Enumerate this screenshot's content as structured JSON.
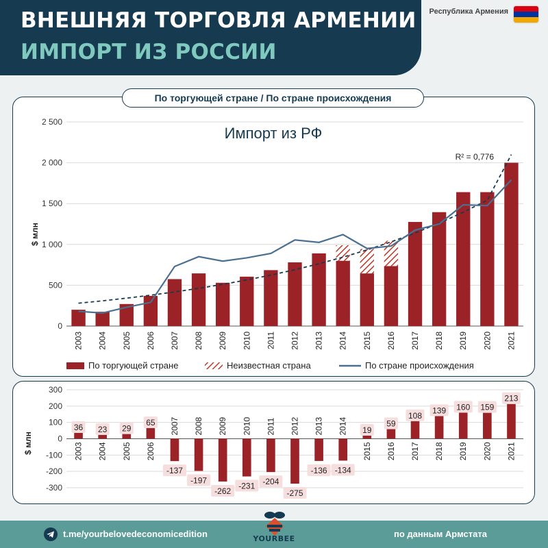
{
  "header": {
    "title": "ВНЕШНЯЯ ТОРГОВЛЯ АРМЕНИИ",
    "subtitle": "ИМПОРТ ИЗ РОССИИ",
    "country_label": "Республика Армения",
    "flag_colors": [
      "#d90012",
      "#0033a0",
      "#f2a800"
    ]
  },
  "toggle_label": "По торгующей стране / По стране происхождения",
  "footer": {
    "link": "t.me/yourbelovedeconomicedition",
    "source": "по данным Армстата",
    "brand": "YOURBEE",
    "telegram_icon": "telegram-icon"
  },
  "chart_data": [
    {
      "type": "bar",
      "title": "Импорт из РФ",
      "ylabel": "$ млн",
      "xlabel": "",
      "ylim": [
        0,
        2500
      ],
      "yticks": [
        0,
        500,
        1000,
        1500,
        2000,
        2500
      ],
      "ytick_labels": [
        "0",
        "500",
        "1 000",
        "1 500",
        "2 000",
        "2 500"
      ],
      "grid": true,
      "legend_position": "bottom",
      "categories": [
        "2003",
        "2004",
        "2005",
        "2006",
        "2007",
        "2008",
        "2009",
        "2010",
        "2011",
        "2012",
        "2013",
        "2014",
        "2015",
        "2016",
        "2017",
        "2018",
        "2019",
        "2020",
        "2021"
      ],
      "series": [
        {
          "name": "По торгующей стране",
          "kind": "bar",
          "color": "#9b2226",
          "values": [
            200,
            175,
            270,
            370,
            575,
            645,
            530,
            605,
            685,
            780,
            890,
            800,
            645,
            735,
            1275,
            1395,
            1640,
            1640,
            2000
          ]
        },
        {
          "name": "Неизвестная страна",
          "kind": "bar-stacked-hatched",
          "color": "#c0392b",
          "values": [
            0,
            0,
            0,
            0,
            0,
            0,
            0,
            0,
            0,
            0,
            0,
            190,
            300,
            310,
            0,
            0,
            0,
            0,
            0
          ]
        },
        {
          "name": "По стране происхождения",
          "kind": "line",
          "color": "#4a6f91",
          "values": [
            180,
            160,
            230,
            290,
            730,
            850,
            795,
            835,
            890,
            1055,
            1025,
            1120,
            950,
            980,
            1175,
            1250,
            1485,
            1475,
            1790
          ]
        }
      ],
      "trendline": {
        "type": "exponential",
        "label": "R² = 0,776",
        "color": "#163a4f",
        "values": [
          280,
          309,
          342,
          378,
          418,
          462,
          511,
          565,
          624,
          690,
          763,
          844,
          933,
          1031,
          1140,
          1261,
          1394,
          1541,
          2100
        ]
      }
    },
    {
      "type": "bar",
      "title": "",
      "ylabel": "$ млн",
      "xlabel": "",
      "ylim": [
        -300,
        300
      ],
      "yticks": [
        -300,
        -200,
        -100,
        0,
        100,
        200,
        300
      ],
      "ytick_labels": [
        "-300",
        "-200",
        "-100",
        "0",
        "100",
        "200",
        "300"
      ],
      "grid": true,
      "categories": [
        "2003",
        "2004",
        "2005",
        "2006",
        "2007",
        "2008",
        "2009",
        "2010",
        "2011",
        "2012",
        "2013",
        "2014",
        "2015",
        "2016",
        "2017",
        "2018",
        "2019",
        "2020",
        "2021"
      ],
      "series": [
        {
          "kind": "bar",
          "color": "#9b2226",
          "values": [
            36,
            23,
            29,
            65,
            -137,
            -197,
            -262,
            -231,
            -204,
            -275,
            -136,
            -134,
            19,
            59,
            108,
            139,
            160,
            159,
            213
          ],
          "labels": [
            "36",
            "23",
            "29",
            "65",
            "-137",
            "-197",
            "-262",
            "-231",
            "-204",
            "-275",
            "-136",
            "-134",
            "19",
            "59",
            "108",
            "139",
            "160",
            "159",
            "213"
          ]
        }
      ]
    }
  ]
}
